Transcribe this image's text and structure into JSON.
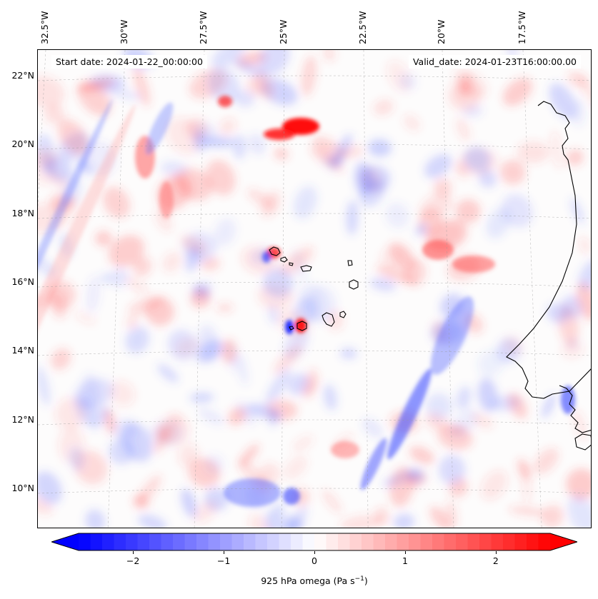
{
  "header": {
    "start_date": "Start date: 2024-01-22_00:00:00",
    "valid_date": "Valid_date: 2024-01-23T16:00:00.00"
  },
  "map": {
    "lon_range": [
      -33.0,
      -15.0
    ],
    "lat_range": [
      8.8,
      22.8
    ],
    "longitude_labels": [
      "32.5°W",
      "30°W",
      "27.5°W",
      "25°W",
      "22.5°W",
      "20°W",
      "17.5°W"
    ],
    "latitude_labels": [
      "22°N",
      "20°N",
      "18°N",
      "16°N",
      "14°N",
      "12°N",
      "10°N"
    ],
    "gridlines": true,
    "field": "925 hPa omega",
    "colors": {
      "negative": "#0000ff",
      "zero": "#ffffff",
      "positive": "#ff0000",
      "coastline": "#000000"
    }
  },
  "colorbar": {
    "range": [
      -2.6,
      2.6
    ],
    "tick_labels": [
      "−2",
      "−1",
      "0",
      "1",
      "2"
    ],
    "label": "925 hPa omega (Pa s",
    "label_superscript": "−1",
    "label_close": ")",
    "extend": "both"
  }
}
